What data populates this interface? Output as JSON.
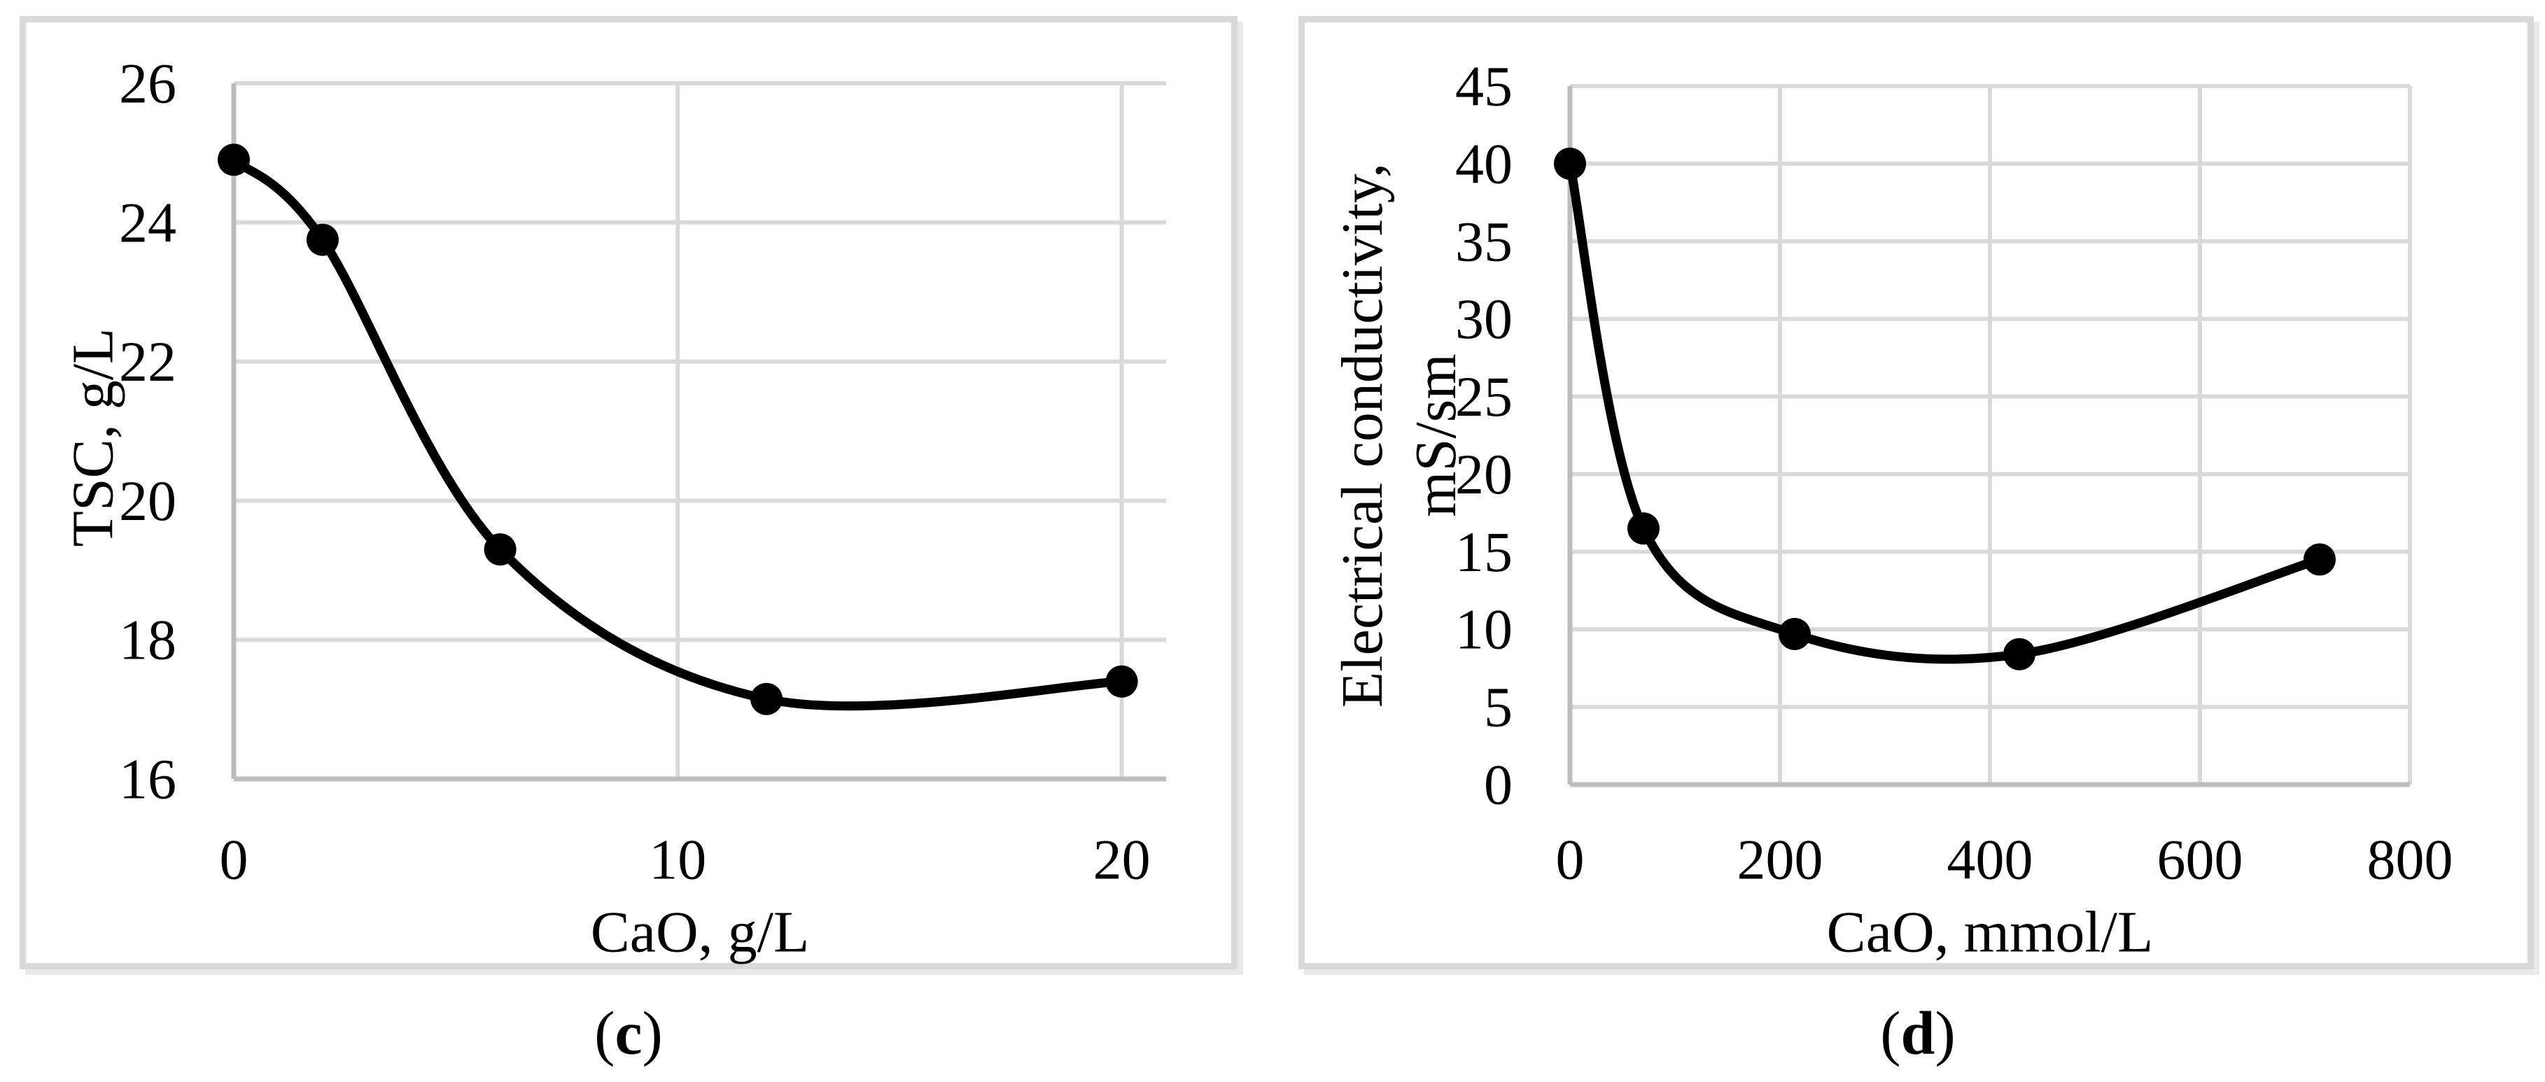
{
  "colors": {
    "line": "#000000",
    "gridline": "#d9d9d9",
    "axis": "#bdbdbd",
    "panel_border": "#d9d9d9",
    "text": "#000000",
    "background": "#ffffff"
  },
  "chart_data": [
    {
      "type": "line",
      "panel": "c",
      "panel_label": {
        "open": "(",
        "letter": "c",
        "close": ")"
      },
      "xlabel": "CaO, g/L",
      "ylabel": "TSC, g/L",
      "x": [
        0,
        2,
        6,
        12,
        20
      ],
      "y": [
        24.9,
        23.75,
        19.3,
        17.15,
        17.4
      ],
      "xlim": [
        0,
        21
      ],
      "ylim": [
        16,
        26
      ],
      "xticks": [
        0,
        10,
        20
      ],
      "yticks": [
        16,
        18,
        20,
        22,
        24,
        26
      ],
      "grid": true,
      "legend": null,
      "smooth": true,
      "marker": "filled-circle",
      "line_color": "#000000"
    },
    {
      "type": "line",
      "panel": "d",
      "panel_label": {
        "open": "(",
        "letter": "d",
        "close": ")"
      },
      "xlabel": "CaO, mmol/L",
      "ylabel": "Electrical conductivity, mS/sm",
      "ylabel_lines": [
        "Electrical conductivity,",
        "mS/sm"
      ],
      "x": [
        0,
        70,
        214,
        428,
        714
      ],
      "y": [
        40,
        16.5,
        9.7,
        8.4,
        14.5
      ],
      "xlim": [
        0,
        800
      ],
      "ylim": [
        0,
        45
      ],
      "xticks": [
        0,
        200,
        400,
        600,
        800
      ],
      "yticks": [
        0,
        5,
        10,
        15,
        20,
        25,
        30,
        35,
        40,
        45
      ],
      "grid": true,
      "legend": null,
      "smooth": true,
      "marker": "filled-circle",
      "line_color": "#000000"
    }
  ]
}
